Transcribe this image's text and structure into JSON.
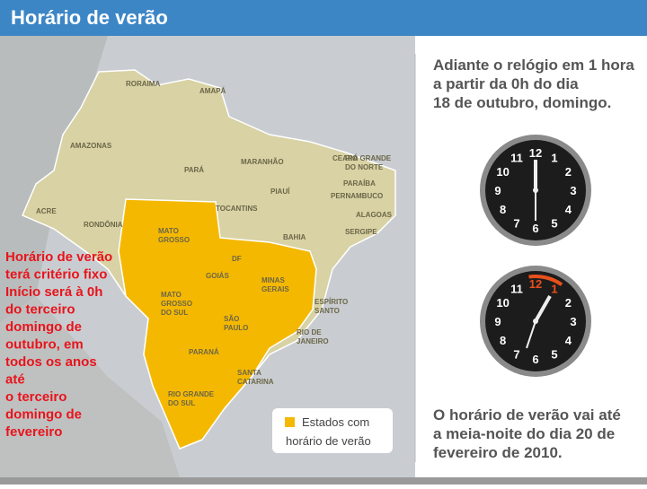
{
  "header": {
    "title": "Horário de verão"
  },
  "map": {
    "labels": [
      [
        "RORAIMA"
      ],
      [
        "AMAPÁ"
      ],
      [
        "AMAZONAS"
      ],
      [
        "PARÁ"
      ],
      [
        "MARANHÃO"
      ],
      [
        "CEARÁ"
      ],
      [
        "RIO GRANDE",
        "DO NORTE"
      ],
      [
        "PARAÍBA"
      ],
      [
        "PIAUÍ"
      ],
      [
        "PERNAMBUCO"
      ],
      [
        "ACRE"
      ],
      [
        "TOCANTINS"
      ],
      [
        "ALAGOAS"
      ],
      [
        "RONDÔNIA"
      ],
      [
        "BAHIA"
      ],
      [
        "SERGIPE"
      ],
      [
        "MATO",
        "GROSSO"
      ],
      [
        "DF"
      ],
      [
        "GOIÁS"
      ],
      [
        "MINAS",
        "GERAIS"
      ],
      [
        "ESPÍRITO",
        "SANTO"
      ],
      [
        "MATO",
        "GROSSO",
        "DO SUL"
      ],
      [
        "SÃO",
        "PAULO"
      ],
      [
        "RIO DE",
        "JANEIRO"
      ],
      [
        "PARANÁ"
      ],
      [
        "SANTA",
        "CATARINA"
      ],
      [
        "RIO GRANDE",
        "DO SUL"
      ]
    ]
  },
  "note": {
    "lines": [
      "Horário de verão",
      "terá critério fixo",
      "Início será à 0h",
      "do terceiro",
      "domingo de",
      "outubro, em",
      "todos os anos",
      "até",
      "o terceiro",
      "domingo de",
      "fevereiro"
    ]
  },
  "legend": {
    "lines": [
      "Estados com",
      "horário de verão"
    ]
  },
  "panel": {
    "top_lines": [
      "Adiante o relógio em 1 hora",
      "a partir da 0h do dia",
      "18 de outubro, domingo."
    ],
    "bottom_lines": [
      "O horário de verão vai até",
      "a meia-noite do dia 20 de",
      "fevereiro de 2010."
    ]
  },
  "clocks": {
    "numerals": [
      12,
      1,
      2,
      3,
      4,
      5,
      6,
      7,
      8,
      9,
      10,
      11
    ]
  }
}
